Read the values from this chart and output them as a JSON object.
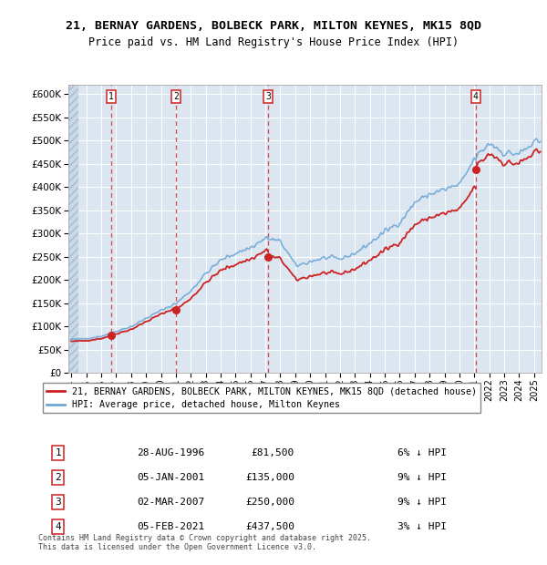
{
  "title1": "21, BERNAY GARDENS, BOLBECK PARK, MILTON KEYNES, MK15 8QD",
  "title2": "Price paid vs. HM Land Registry's House Price Index (HPI)",
  "ylim": [
    0,
    620000
  ],
  "yticks": [
    0,
    50000,
    100000,
    150000,
    200000,
    250000,
    300000,
    350000,
    400000,
    450000,
    500000,
    550000,
    600000
  ],
  "ytick_labels": [
    "£0",
    "£50K",
    "£100K",
    "£150K",
    "£200K",
    "£250K",
    "£300K",
    "£350K",
    "£400K",
    "£450K",
    "£500K",
    "£550K",
    "£600K"
  ],
  "xlim_start": 1993.8,
  "xlim_end": 2025.5,
  "plot_bg_color": "#dce6f1",
  "grid_color": "#ffffff",
  "sale_dates": [
    1996.66,
    2001.02,
    2007.17,
    2021.09
  ],
  "sale_prices": [
    81500,
    135000,
    250000,
    437500
  ],
  "sale_labels": [
    "1",
    "2",
    "3",
    "4"
  ],
  "sale_pcts": [
    "6% ↓ HPI",
    "9% ↓ HPI",
    "9% ↓ HPI",
    "3% ↓ HPI"
  ],
  "sale_date_labels": [
    "28-AUG-1996",
    "05-JAN-2001",
    "02-MAR-2007",
    "05-FEB-2021"
  ],
  "legend_label_red": "21, BERNAY GARDENS, BOLBECK PARK, MILTON KEYNES, MK15 8QD (detached house)",
  "legend_label_blue": "HPI: Average price, detached house, Milton Keynes",
  "footer": "Contains HM Land Registry data © Crown copyright and database right 2025.\nThis data is licensed under the Open Government Licence v3.0.",
  "xtick_years": [
    1994,
    1995,
    1996,
    1997,
    1998,
    1999,
    2000,
    2001,
    2002,
    2003,
    2004,
    2005,
    2006,
    2007,
    2008,
    2009,
    2010,
    2011,
    2012,
    2013,
    2014,
    2015,
    2016,
    2017,
    2018,
    2019,
    2020,
    2021,
    2022,
    2023,
    2024,
    2025
  ],
  "hpi_annual": [
    72000,
    74000,
    79000,
    90000,
    100000,
    118000,
    135000,
    150000,
    178000,
    215000,
    243000,
    258000,
    270000,
    290000,
    282000,
    230000,
    240000,
    248000,
    245000,
    258000,
    280000,
    305000,
    325000,
    368000,
    385000,
    395000,
    405000,
    462000,
    495000,
    472000,
    472000,
    495000
  ]
}
